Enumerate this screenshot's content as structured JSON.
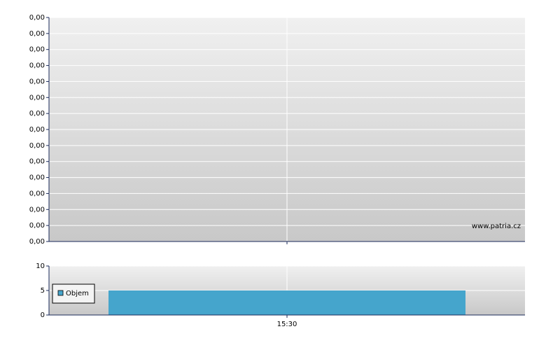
{
  "chart_data": [
    {
      "type": "line",
      "annotation": "www.patria.cz",
      "categories": [
        "15:30"
      ],
      "series": [],
      "ylim": [
        0,
        0.0042
      ],
      "yticks": [
        {
          "value": 0,
          "label": "0,00"
        },
        {
          "value": 0.0003,
          "label": "0,00"
        },
        {
          "value": 0.0006,
          "label": "0,00"
        },
        {
          "value": 0.0009,
          "label": "0,00"
        },
        {
          "value": 0.0012,
          "label": "0,00"
        },
        {
          "value": 0.0015,
          "label": "0,00"
        },
        {
          "value": 0.0018,
          "label": "0,00"
        },
        {
          "value": 0.0021,
          "label": "0,00"
        },
        {
          "value": 0.0024,
          "label": "0,00"
        },
        {
          "value": 0.0027,
          "label": "0,00"
        },
        {
          "value": 0.003,
          "label": "0,00"
        },
        {
          "value": 0.0033,
          "label": "0,00"
        },
        {
          "value": 0.0036,
          "label": "0,00"
        },
        {
          "value": 0.0039,
          "label": "0,00"
        },
        {
          "value": 0.0042,
          "label": "0,00"
        }
      ],
      "grid": true
    },
    {
      "type": "bar",
      "categories": [
        "15:30"
      ],
      "series": [
        {
          "name": "Objem",
          "color": "#45a5cc",
          "values": [
            5
          ]
        }
      ],
      "ylim": [
        0,
        10
      ],
      "yticks": [
        0,
        5,
        10
      ],
      "grid": true
    }
  ]
}
